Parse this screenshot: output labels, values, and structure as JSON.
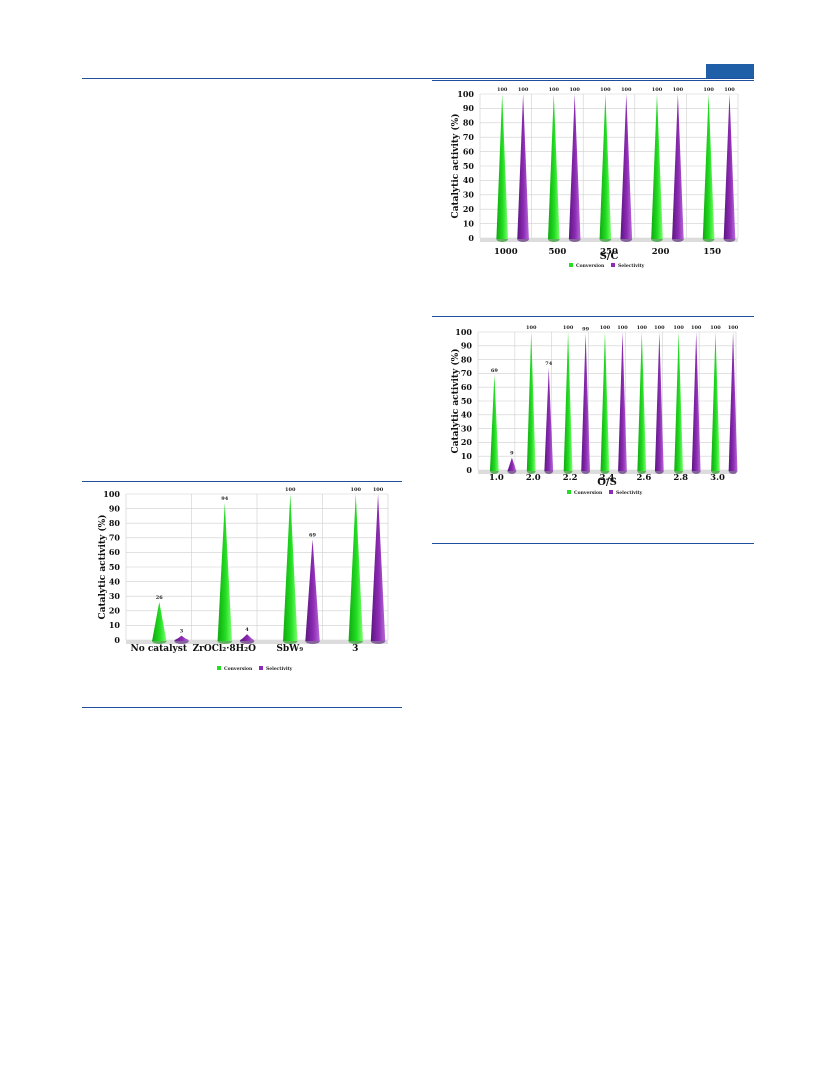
{
  "colors": {
    "accent": "#1f5fa8",
    "conversion": "#22dd22",
    "selectivity": "#8e2bb4",
    "grid": "#cfcfcf"
  },
  "chart_data": [
    {
      "id": "chart-sc",
      "type": "bar",
      "ylabel": "Catalytic activity (%)",
      "xlabel": "S/C",
      "ylim": [
        0,
        100
      ],
      "yticks": [
        0,
        10,
        20,
        30,
        40,
        50,
        60,
        70,
        80,
        90,
        100
      ],
      "categories": [
        "1000",
        "500",
        "250",
        "200",
        "150"
      ],
      "series": [
        {
          "name": "Conversion",
          "values": [
            100,
            100,
            100,
            100,
            100
          ],
          "labels": [
            "100",
            "100",
            "100",
            "100",
            "100"
          ]
        },
        {
          "name": "Selectivity",
          "values": [
            100,
            100,
            100,
            100,
            100
          ],
          "labels": [
            "100",
            "100",
            "100",
            "100",
            "100"
          ]
        }
      ],
      "grid": true,
      "legend_position": "bottom"
    },
    {
      "id": "chart-os",
      "type": "bar",
      "ylabel": "Catalytic activity (%)",
      "xlabel": "O/S",
      "ylim": [
        0,
        100
      ],
      "yticks": [
        0,
        10,
        20,
        30,
        40,
        50,
        60,
        70,
        80,
        90,
        100
      ],
      "categories": [
        "1.0",
        "2.0",
        "2.2",
        "2.4",
        "2.6",
        "2.8",
        "3.0"
      ],
      "series": [
        {
          "name": "Conversion",
          "values": [
            69,
            100,
            100,
            100,
            100,
            100,
            100
          ],
          "labels": [
            "69",
            "100",
            "100",
            "100",
            "100",
            "100",
            "100"
          ]
        },
        {
          "name": "Selectivity",
          "values": [
            9,
            74,
            99,
            100,
            100,
            100,
            100
          ],
          "labels": [
            "9",
            "74",
            "99",
            "100",
            "100",
            "100",
            "100"
          ]
        }
      ],
      "grid": true,
      "legend_position": "bottom"
    },
    {
      "id": "chart-cat",
      "type": "bar",
      "ylabel": "Catalytic activity (%)",
      "xlabel": "",
      "ylim": [
        0,
        100
      ],
      "yticks": [
        0,
        10,
        20,
        30,
        40,
        50,
        60,
        70,
        80,
        90,
        100
      ],
      "categories": [
        "No catalyst",
        "ZrOCl₂·8H₂O",
        "SbW₉",
        "3"
      ],
      "series": [
        {
          "name": "Conversion",
          "values": [
            26,
            94,
            100,
            100
          ],
          "labels": [
            "26",
            "94",
            "100",
            "100"
          ]
        },
        {
          "name": "Selectivity",
          "values": [
            3,
            4,
            69,
            100
          ],
          "labels": [
            "3",
            "4",
            "69",
            "100"
          ]
        }
      ],
      "grid": true,
      "legend_position": "bottom"
    }
  ]
}
